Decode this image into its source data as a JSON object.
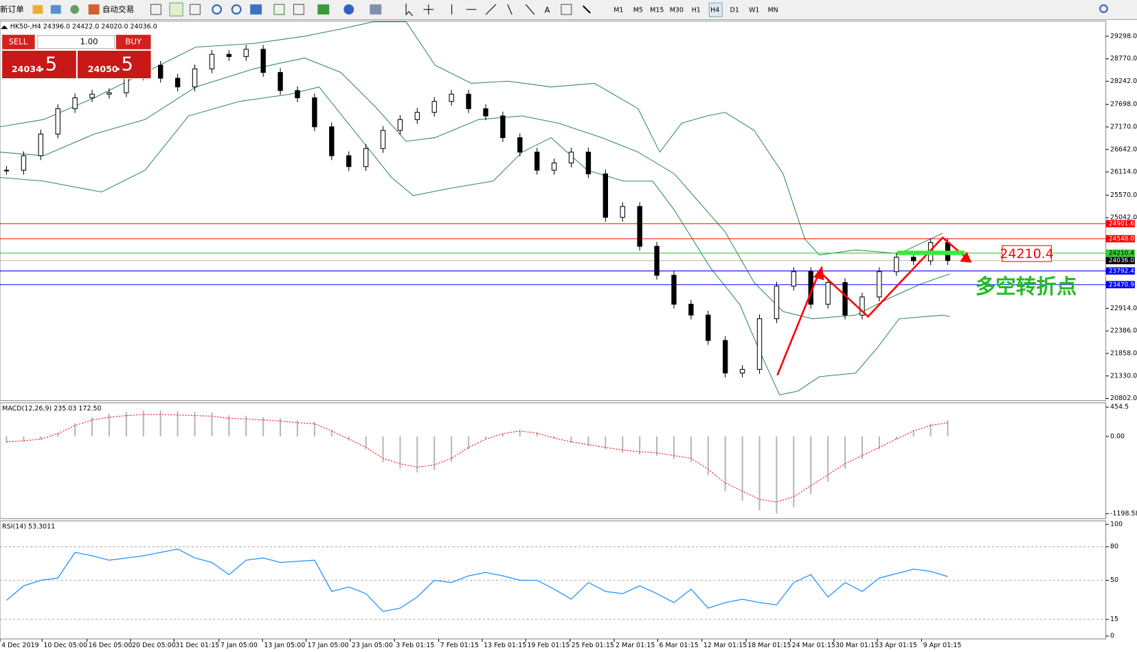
{
  "toolbar": {
    "new_order": "新订单",
    "auto_trade": "自动交易",
    "timeframes": [
      "M1",
      "M5",
      "M15",
      "M30",
      "H1",
      "H4",
      "D1",
      "W1",
      "MN"
    ]
  },
  "header": "HK50-,H4  24396.0 24422.0 24020.0 24036.0",
  "trade_panel": {
    "sell": "SELL",
    "lots": "1.00",
    "buy": "BUY",
    "bid_main": "24034",
    "bid_frac": ".5",
    "ask_main": "24050",
    "ask_frac": ".5"
  },
  "price_axis": {
    "range": [
      20802,
      29298
    ],
    "ticks": [
      {
        "value": 29298,
        "label": "29298.0"
      },
      {
        "value": 28770,
        "label": "28770.0"
      },
      {
        "value": 28242,
        "label": "28242.0"
      },
      {
        "value": 27698,
        "label": "27698.0"
      },
      {
        "value": 27170,
        "label": "27170.0"
      },
      {
        "value": 26642,
        "label": "26642.0"
      },
      {
        "value": 26114,
        "label": "26114.0"
      },
      {
        "value": 25570,
        "label": "25570.0"
      },
      {
        "value": 25042,
        "label": "25042.0"
      },
      {
        "value": 22914,
        "label": "22914.0"
      },
      {
        "value": 22386,
        "label": "22386.0"
      },
      {
        "value": 21858,
        "label": "21858.0"
      },
      {
        "value": 21330,
        "label": "21330.0"
      },
      {
        "value": 20802,
        "label": "20802.0"
      }
    ]
  },
  "levels": [
    {
      "value": 24901.6,
      "label": "24901.6",
      "color": "#ff0000"
    },
    {
      "value": 24548,
      "label": "24548.0",
      "color": "#ff0000"
    },
    {
      "value": 24210.4,
      "label": "24210.4",
      "color": "#32cd32"
    },
    {
      "value": 24036,
      "label": "24036.0",
      "color": "#000000"
    },
    {
      "value": 23792.4,
      "label": "23792.4",
      "color": "#0000ff"
    },
    {
      "value": 23470.9,
      "label": "23470.9",
      "color": "#0000ff"
    }
  ],
  "candles": {
    "closes": [
      26155,
      26495,
      27004,
      27599,
      27854,
      27939,
      27973,
      28364,
      28618,
      28313,
      28109,
      28533,
      28873,
      28822,
      28992,
      28448,
      28024,
      27854,
      27174,
      26495,
      26240,
      26665,
      27089,
      27344,
      27514,
      27769,
      27939,
      27599,
      27429,
      26919,
      26580,
      26155,
      26325,
      26580,
      26070,
      25050,
      25305,
      24371,
      23691,
      23012,
      22757,
      22162,
      21398,
      21483,
      22672,
      23436,
      23776,
      23012,
      23521,
      22757,
      23182,
      23776,
      24116,
      24031,
      24456,
      24036
    ]
  },
  "annotation": {
    "price_box": "24210.4",
    "text": "多空转折点"
  },
  "macd": {
    "label": "MACD(12,26,9) 235.03 172.50",
    "range": [
      -1198.58,
      454.5
    ],
    "ticks": [
      {
        "value": 454.5,
        "label": "454.5"
      },
      {
        "value": 0,
        "label": "0.00"
      },
      {
        "value": -1198.58,
        "label": "-1198.58"
      }
    ],
    "histogram": [
      -100,
      -80,
      -50,
      50,
      200,
      300,
      350,
      380,
      400,
      400,
      390,
      380,
      370,
      330,
      320,
      300,
      280,
      250,
      230,
      100,
      -50,
      -200,
      -400,
      -500,
      -560,
      -520,
      -400,
      -200,
      -50,
      50,
      100,
      60,
      -30,
      -100,
      -150,
      -200,
      -250,
      -280,
      -300,
      -350,
      -400,
      -600,
      -850,
      -1000,
      -1150,
      -1198,
      -1100,
      -900,
      -700,
      -500,
      -350,
      -200,
      -50,
      100,
      200,
      250
    ]
  },
  "rsi": {
    "label": "RSI(14) 53.3011",
    "range": [
      0,
      100
    ],
    "ticks": [
      100,
      80,
      50,
      15,
      0
    ],
    "values": [
      32,
      45,
      50,
      52,
      75,
      72,
      68,
      70,
      72,
      75,
      78,
      70,
      66,
      55,
      68,
      70,
      66,
      67,
      68,
      40,
      44,
      38,
      22,
      25,
      35,
      50,
      48,
      54,
      57,
      54,
      50,
      50,
      42,
      33,
      48,
      40,
      38,
      45,
      38,
      30,
      42,
      25,
      30,
      33,
      30,
      28,
      48,
      55,
      35,
      48,
      40,
      52,
      56,
      60,
      58,
      53.3011
    ]
  },
  "time_axis": [
    "4 Dec 2019",
    "10 Dec 05:00",
    "16 Dec 05:00",
    "20 Dec 05:00",
    "31 Dec 01:15",
    "7 Jan 05:00",
    "13 Jan 05:00",
    "17 Jan 05:00",
    "23 Jan 05:00",
    "3 Feb 01:15",
    "7 Feb 01:15",
    "13 Feb 01:15",
    "19 Feb 01:15",
    "25 Feb 01:15",
    "2 Mar 01:15",
    "6 Mar 01:15",
    "12 Mar 01:15",
    "18 Mar 01:15",
    "24 Mar 01:15",
    "30 Mar 01:15",
    "3 Apr 01:15",
    "9 Apr 01:15"
  ]
}
